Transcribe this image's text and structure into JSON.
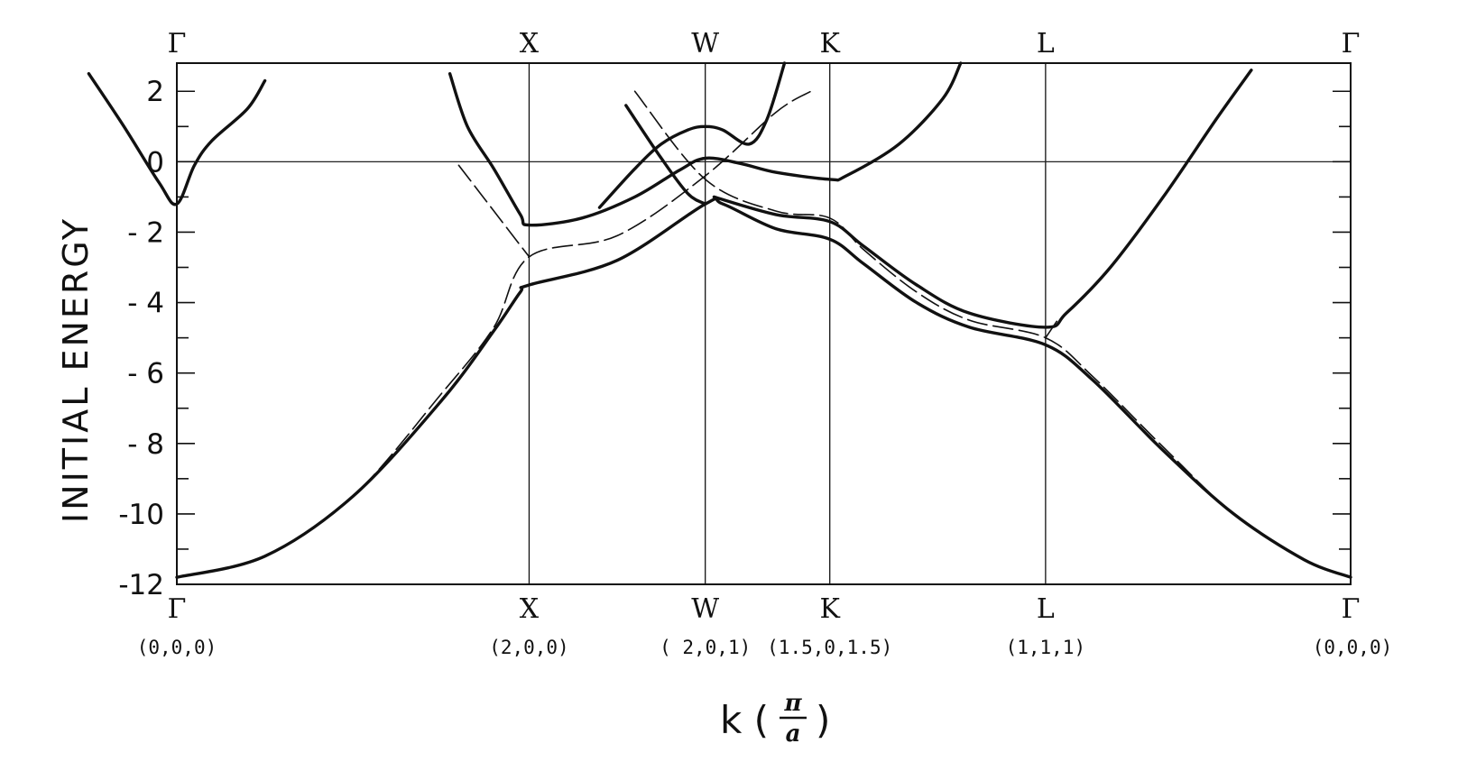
{
  "chart_data": {
    "type": "line",
    "ylabel": "INITIAL ENERGY",
    "xlabel_prefix": "k (",
    "xlabel_num": "π",
    "xlabel_den": "a",
    "xlabel_suffix": ")",
    "ylim": [
      -12,
      2.8
    ],
    "yticks": [
      "2",
      "0",
      "- 2",
      "- 4",
      "- 6",
      "- 8",
      "-10",
      "-12"
    ],
    "grid": false,
    "k_points": [
      {
        "symbol": "Γ",
        "coord": "(0,0,0)",
        "x": 0
      },
      {
        "symbol": "X",
        "coord": "(2,0,0)",
        "x": 2
      },
      {
        "symbol": "W",
        "coord": "( 2,0,1)",
        "x": 3
      },
      {
        "symbol": "K",
        "coord": "(1.5,0,1.5)",
        "x": 3.707
      },
      {
        "symbol": "L",
        "coord": "(1,1,1)",
        "x": 4.932
      },
      {
        "symbol": "Γ",
        "coord": "(0,0,0)",
        "x": 6.664
      }
    ],
    "series": [
      {
        "style": "solid",
        "points": [
          [
            0,
            -11.8
          ],
          [
            0.5,
            -11.2
          ],
          [
            1.0,
            -9.5
          ],
          [
            1.5,
            -6.8
          ],
          [
            1.8,
            -4.8
          ],
          [
            1.95,
            -3.7
          ],
          [
            2.0,
            -3.5
          ],
          [
            2.5,
            -2.8
          ],
          [
            3.0,
            -1.2
          ],
          [
            3.1,
            -1.2
          ],
          [
            3.4,
            -1.9
          ],
          [
            3.707,
            -2.2
          ],
          [
            3.9,
            -2.9
          ],
          [
            4.2,
            -4.0
          ],
          [
            4.5,
            -4.7
          ],
          [
            4.932,
            -5.2
          ],
          [
            5.2,
            -6.2
          ],
          [
            5.6,
            -8.2
          ],
          [
            6.0,
            -10.0
          ],
          [
            6.4,
            -11.3
          ],
          [
            6.664,
            -11.8
          ]
        ]
      },
      {
        "style": "solid",
        "points": [
          [
            -0.5,
            2.5
          ],
          [
            -0.3,
            1.0
          ],
          [
            -0.1,
            -0.6
          ],
          [
            0.0,
            -1.2
          ],
          [
            0.1,
            -0.1
          ],
          [
            0.2,
            0.6
          ],
          [
            0.4,
            1.5
          ],
          [
            0.5,
            2.3
          ]
        ]
      },
      {
        "style": "solid",
        "points": [
          [
            1.55,
            2.5
          ],
          [
            1.65,
            1.0
          ],
          [
            1.8,
            -0.2
          ],
          [
            1.95,
            -1.5
          ],
          [
            2.0,
            -1.8
          ],
          [
            2.3,
            -1.6
          ],
          [
            2.6,
            -1.0
          ],
          [
            2.85,
            -0.25
          ],
          [
            3.0,
            0.1
          ],
          [
            3.2,
            -0.05
          ],
          [
            3.4,
            -0.3
          ],
          [
            3.707,
            -0.5
          ],
          [
            3.8,
            -0.4
          ],
          [
            4.1,
            0.5
          ],
          [
            4.35,
            1.8
          ],
          [
            4.45,
            2.8
          ]
        ]
      },
      {
        "style": "solid",
        "points": [
          [
            2.55,
            1.6
          ],
          [
            2.75,
            0.1
          ],
          [
            2.9,
            -0.9
          ],
          [
            3.0,
            -1.2
          ]
        ]
      },
      {
        "style": "solid",
        "points": [
          [
            2.4,
            -1.3
          ],
          [
            2.6,
            -0.2
          ],
          [
            2.75,
            0.5
          ],
          [
            2.9,
            0.9
          ],
          [
            3.0,
            1.0
          ],
          [
            3.1,
            0.9
          ],
          [
            3.25,
            0.5
          ],
          [
            3.35,
            1.2
          ],
          [
            3.45,
            2.8
          ]
        ]
      },
      {
        "style": "solid",
        "points": [
          [
            3.05,
            -1.0
          ],
          [
            3.4,
            -1.5
          ],
          [
            3.707,
            -1.7
          ],
          [
            3.9,
            -2.4
          ],
          [
            4.2,
            -3.5
          ],
          [
            4.5,
            -4.3
          ],
          [
            4.932,
            -4.7
          ],
          [
            5.05,
            -4.3
          ],
          [
            5.3,
            -3.0
          ],
          [
            5.6,
            -1.0
          ],
          [
            5.9,
            1.2
          ],
          [
            6.1,
            2.6
          ]
        ]
      },
      {
        "style": "dashed",
        "points": [
          [
            0,
            -11.8
          ],
          [
            0.5,
            -11.2
          ],
          [
            1.0,
            -9.5
          ],
          [
            1.5,
            -6.6
          ],
          [
            1.8,
            -4.7
          ],
          [
            2.0,
            -2.7
          ],
          [
            2.5,
            -2.1
          ],
          [
            3.0,
            -0.4
          ],
          [
            3.4,
            1.4
          ],
          [
            3.6,
            2.0
          ]
        ]
      },
      {
        "style": "dashed",
        "points": [
          [
            1.6,
            -0.1
          ],
          [
            1.8,
            -1.4
          ],
          [
            2.0,
            -2.7
          ]
        ]
      },
      {
        "style": "dashed",
        "points": [
          [
            2.6,
            2.0
          ],
          [
            3.0,
            -0.5
          ],
          [
            3.4,
            -1.4
          ],
          [
            3.707,
            -1.6
          ],
          [
            3.9,
            -2.5
          ],
          [
            4.2,
            -3.7
          ],
          [
            4.5,
            -4.5
          ],
          [
            4.932,
            -5.0
          ],
          [
            5.2,
            -6.1
          ],
          [
            5.6,
            -8.1
          ],
          [
            6.0,
            -10.0
          ],
          [
            6.4,
            -11.3
          ],
          [
            6.664,
            -11.8
          ]
        ]
      },
      {
        "style": "dashed",
        "points": [
          [
            4.932,
            -5.0
          ],
          [
            5.0,
            -4.5
          ]
        ]
      }
    ]
  }
}
